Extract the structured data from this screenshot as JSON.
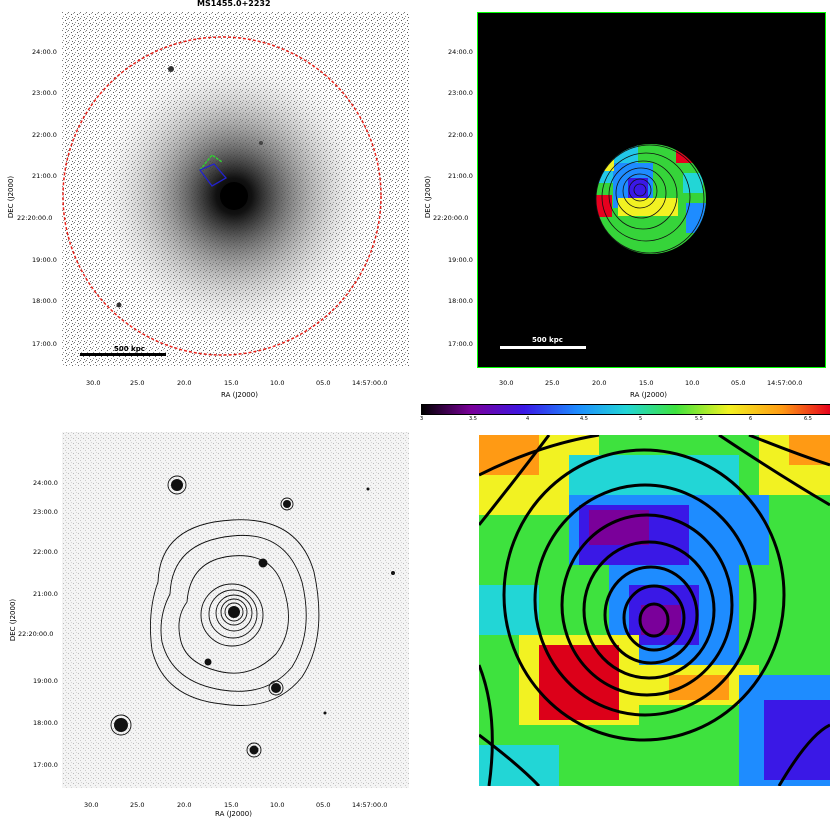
{
  "panels": {
    "xray": {
      "title": "MS1455.0+2232",
      "scale_label": "500 kpc",
      "xlabel": "RA (J2000)",
      "ylabel": "DEC (J2000)",
      "xticks": [
        "30.0",
        "25.0",
        "20.0",
        "15.0",
        "10.0",
        "05.0",
        "14:57:00.0"
      ],
      "yticks": [
        "24:00.0",
        "23:00.0",
        "22:00.0",
        "21:00.0",
        "22:20:00.0",
        "19:00.0",
        "18:00.0",
        "17:00.0"
      ],
      "colors": {
        "circle": "#e8241c",
        "sector_green": "#33cc33",
        "sector_blue": "#2222cc"
      }
    },
    "temp_map": {
      "scale_label": "500 kpc",
      "xlabel": "RA (J2000)",
      "ylabel": "DEC (J2000)",
      "xticks": [
        "30.0",
        "25.0",
        "20.0",
        "15.0",
        "10.0",
        "05.0",
        "14:57:00.0"
      ],
      "yticks": [
        "24:00.0",
        "23:00.0",
        "22:00.0",
        "21:00.0",
        "22:20:00.0",
        "19:00.0",
        "18:00.0",
        "17:00.0"
      ],
      "colors": {
        "frame": "#00ff00",
        "background": "#000000"
      }
    },
    "optical": {
      "xlabel": "RA (J2000)",
      "ylabel": "DEC (J2000)",
      "xticks": [
        "30.0",
        "25.0",
        "20.0",
        "15.0",
        "10.0",
        "05.0",
        "14:57:00.0"
      ],
      "yticks": [
        "24:00.0",
        "23:00.0",
        "22:00.0",
        "21:00.0",
        "22:20:00.0",
        "19:00.0",
        "18:00.0",
        "17:00.0"
      ]
    },
    "zoom": {
      "colorbar_ticks": [
        "3",
        "3.5",
        "4",
        "4.5",
        "5",
        "5.5",
        "6",
        "6.5"
      ],
      "colorbar_colors": [
        "#000000",
        "#7a009a",
        "#3a18e6",
        "#1e8cff",
        "#22d6d6",
        "#3ee23e",
        "#f2f222",
        "#ff9a14",
        "#e6001e"
      ]
    }
  }
}
